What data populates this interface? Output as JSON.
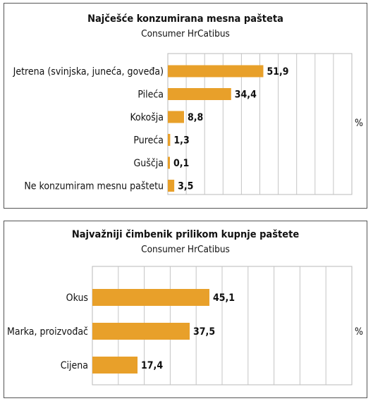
{
  "chart_data": [
    {
      "type": "bar",
      "orientation": "horizontal",
      "title": "Najčešće konzumirana mesna pašteta",
      "subtitle": "Consumer HrCatibus",
      "unit": "%",
      "categories": [
        "Jetrena (svinjska, juneća, goveđa)",
        "Pileća",
        "Kokošja",
        "Pureća",
        "Guščja",
        "Ne konzumiram mesnu paštetu"
      ],
      "value_labels": [
        "51,9",
        "34,4",
        "8,8",
        "1,3",
        "0,1",
        "3,5"
      ],
      "values": [
        51.9,
        34.4,
        8.8,
        1.3,
        0.1,
        3.5
      ],
      "xlim": [
        0,
        100
      ],
      "grid": true,
      "bar_color": "#E8A02A"
    },
    {
      "type": "bar",
      "orientation": "horizontal",
      "title": "Najvažniji čimbenik prilikom kupnje paštete",
      "subtitle": "Consumer HrCatibus",
      "unit": "%",
      "categories": [
        "Okus",
        "Marka, proizvođač",
        "Cijena"
      ],
      "value_labels": [
        "45,1",
        "37,5",
        "17,4"
      ],
      "values": [
        45.1,
        37.5,
        17.4
      ],
      "xlim": [
        0,
        100
      ],
      "grid": true,
      "bar_color": "#E8A02A"
    }
  ]
}
